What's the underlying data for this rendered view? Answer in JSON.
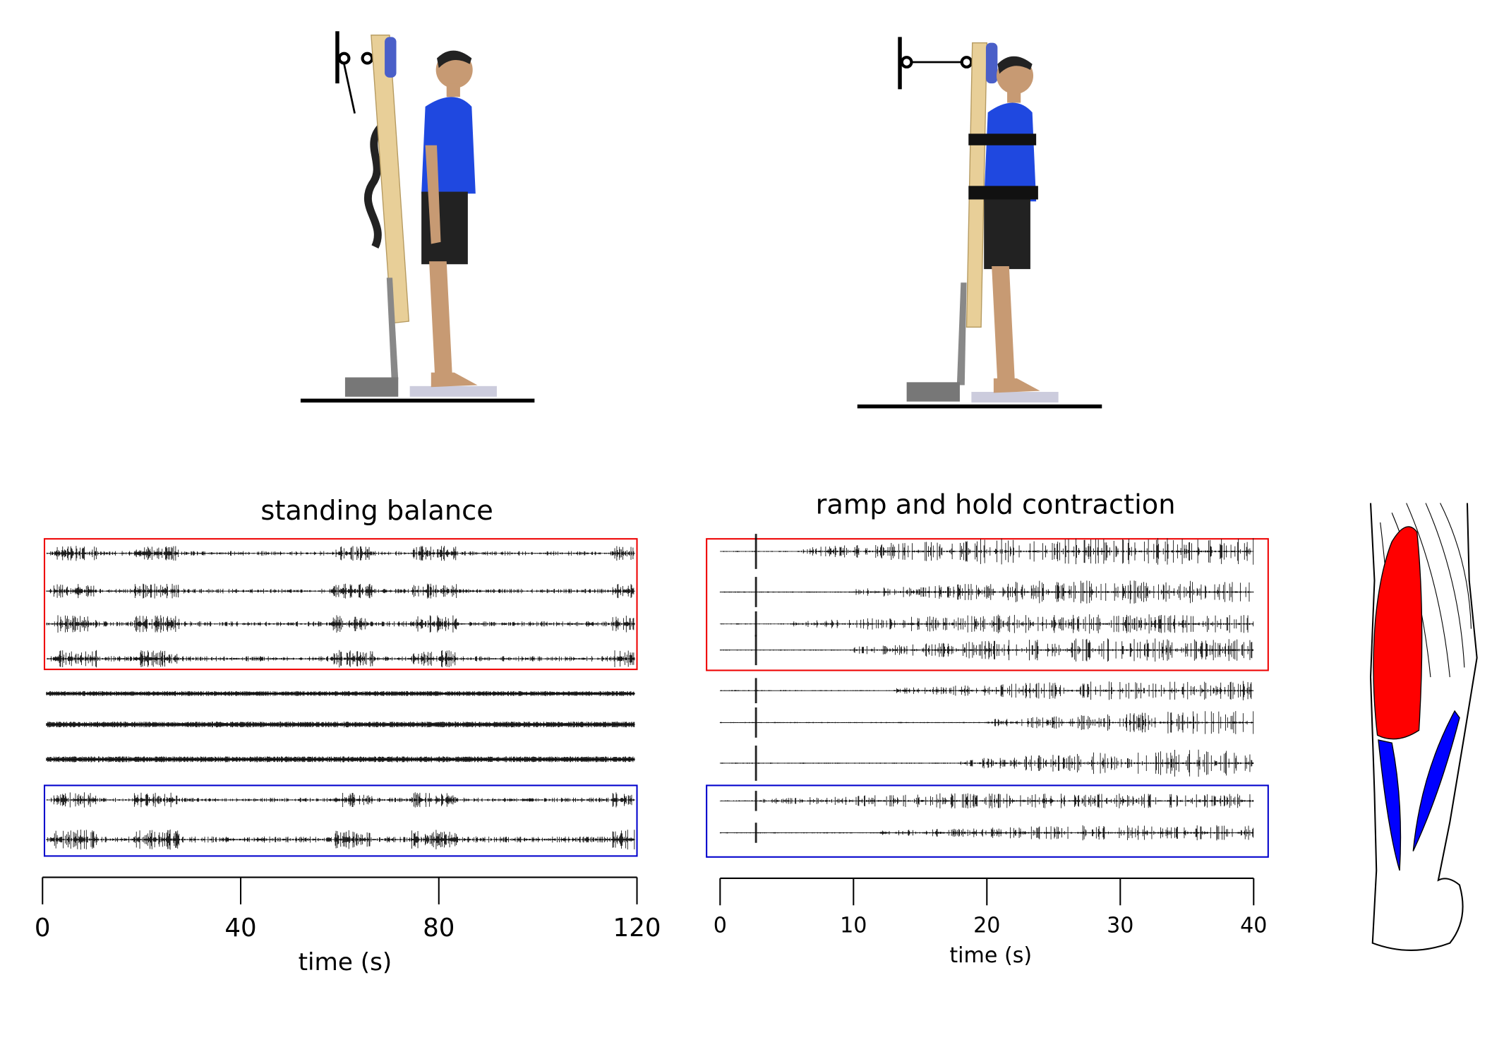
{
  "panels": [
    {
      "title": "standing balance",
      "xlabel": "time (s)",
      "xlim": [
        0,
        120
      ],
      "xticks": [
        0,
        40,
        80,
        120
      ]
    },
    {
      "title": "ramp and hold contraction",
      "xlabel": "time (s)",
      "xlim": [
        0,
        40
      ],
      "xticks": [
        0,
        10,
        20,
        30,
        40
      ]
    }
  ]
}
